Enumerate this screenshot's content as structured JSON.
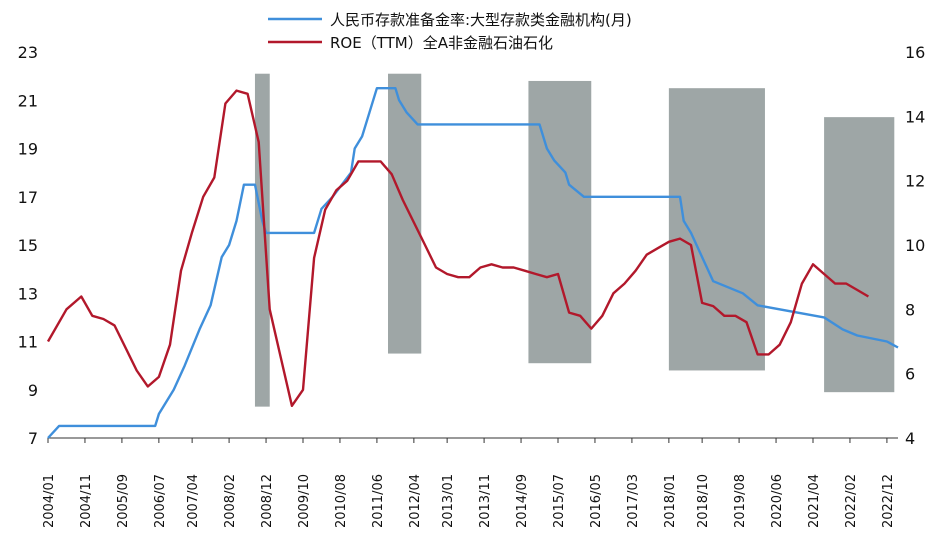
{
  "chart_data": {
    "type": "line",
    "legend_position": "top",
    "x_tick_labels": [
      "2004/01",
      "2004/11",
      "2005/09",
      "2006/07",
      "2007/04",
      "2008/02",
      "2008/12",
      "2009/10",
      "2010/08",
      "2011/06",
      "2012/04",
      "2013/01",
      "2013/11",
      "2014/09",
      "2015/07",
      "2016/05",
      "2017/03",
      "2018/01",
      "2018/10",
      "2019/08",
      "2020/06",
      "2021/04",
      "2022/02",
      "2022/12"
    ],
    "y_left": {
      "min": 7,
      "max": 23,
      "ticks": [
        7,
        9,
        11,
        13,
        15,
        17,
        19,
        21,
        23
      ]
    },
    "y_right": {
      "min": 4,
      "max": 16,
      "ticks": [
        4,
        6,
        8,
        10,
        12,
        14,
        16
      ]
    },
    "shaded_periods": [
      {
        "start": "2008/09",
        "end": "2009/01",
        "ymin_left": 8.3,
        "ymax_left": 22.1
      },
      {
        "start": "2011/09",
        "end": "2012/06",
        "ymin_left": 10.5,
        "ymax_left": 22.1
      },
      {
        "start": "2014/11",
        "end": "2016/04",
        "ymin_left": 10.1,
        "ymax_left": 21.8
      },
      {
        "start": "2018/01",
        "end": "2020/03",
        "ymin_left": 9.8,
        "ymax_left": 21.5
      },
      {
        "start": "2021/07",
        "end": "2023/02",
        "ymin_left": 8.9,
        "ymax_left": 20.3
      }
    ],
    "series": [
      {
        "name": "人民币存款准备金率:大型存款类金融机构(月)",
        "axis": "left",
        "color": "#3f8fdb",
        "points": [
          [
            "2004/01",
            7.0
          ],
          [
            "2004/04",
            7.5
          ],
          [
            "2006/06",
            7.5
          ],
          [
            "2006/07",
            8.0
          ],
          [
            "2006/11",
            9.0
          ],
          [
            "2007/02",
            10.0
          ],
          [
            "2007/06",
            11.5
          ],
          [
            "2007/09",
            12.5
          ],
          [
            "2007/12",
            14.5
          ],
          [
            "2008/02",
            15.0
          ],
          [
            "2008/04",
            16.0
          ],
          [
            "2008/06",
            17.5
          ],
          [
            "2008/09",
            17.5
          ],
          [
            "2008/11",
            16.0
          ],
          [
            "2008/12",
            15.5
          ],
          [
            "2010/01",
            15.5
          ],
          [
            "2010/03",
            16.5
          ],
          [
            "2010/06",
            17.0
          ],
          [
            "2010/11",
            18.0
          ],
          [
            "2010/12",
            19.0
          ],
          [
            "2011/02",
            19.5
          ],
          [
            "2011/04",
            20.5
          ],
          [
            "2011/06",
            21.5
          ],
          [
            "2011/11",
            21.5
          ],
          [
            "2011/12",
            21.0
          ],
          [
            "2012/02",
            20.5
          ],
          [
            "2012/05",
            20.0
          ],
          [
            "2015/02",
            20.0
          ],
          [
            "2015/04",
            19.0
          ],
          [
            "2015/06",
            18.5
          ],
          [
            "2015/09",
            18.0
          ],
          [
            "2015/10",
            17.5
          ],
          [
            "2016/02",
            17.0
          ],
          [
            "2018/04",
            17.0
          ],
          [
            "2018/05",
            16.0
          ],
          [
            "2018/07",
            15.5
          ],
          [
            "2018/10",
            14.5
          ],
          [
            "2019/01",
            13.5
          ],
          [
            "2019/09",
            13.0
          ],
          [
            "2020/01",
            12.5
          ],
          [
            "2021/07",
            12.0
          ],
          [
            "2021/12",
            11.5
          ],
          [
            "2022/04",
            11.25
          ],
          [
            "2022/12",
            11.0
          ],
          [
            "2023/03",
            10.75
          ]
        ]
      },
      {
        "name": "ROE（TTM）全A非金融石油石化",
        "axis": "right",
        "color": "#b2182b",
        "points": [
          [
            "2004/01",
            7.0
          ],
          [
            "2004/06",
            8.0
          ],
          [
            "2004/10",
            8.4
          ],
          [
            "2005/01",
            7.8
          ],
          [
            "2005/04",
            7.7
          ],
          [
            "2005/07",
            7.5
          ],
          [
            "2005/10",
            6.8
          ],
          [
            "2006/01",
            6.1
          ],
          [
            "2006/04",
            5.6
          ],
          [
            "2006/07",
            5.9
          ],
          [
            "2006/10",
            6.9
          ],
          [
            "2007/01",
            9.2
          ],
          [
            "2007/04",
            10.4
          ],
          [
            "2007/07",
            11.5
          ],
          [
            "2007/10",
            12.1
          ],
          [
            "2008/01",
            14.4
          ],
          [
            "2008/04",
            14.8
          ],
          [
            "2008/07",
            14.7
          ],
          [
            "2008/10",
            13.2
          ],
          [
            "2009/01",
            8.0
          ],
          [
            "2009/04",
            6.5
          ],
          [
            "2009/07",
            5.0
          ],
          [
            "2009/10",
            5.5
          ],
          [
            "2010/01",
            9.6
          ],
          [
            "2010/04",
            11.1
          ],
          [
            "2010/07",
            11.7
          ],
          [
            "2010/10",
            12.0
          ],
          [
            "2011/01",
            12.6
          ],
          [
            "2011/04",
            12.6
          ],
          [
            "2011/07",
            12.6
          ],
          [
            "2011/10",
            12.2
          ],
          [
            "2012/01",
            11.4
          ],
          [
            "2012/04",
            10.7
          ],
          [
            "2012/07",
            10.0
          ],
          [
            "2012/10",
            9.3
          ],
          [
            "2013/01",
            9.1
          ],
          [
            "2013/04",
            9.0
          ],
          [
            "2013/07",
            9.0
          ],
          [
            "2013/10",
            9.3
          ],
          [
            "2014/01",
            9.4
          ],
          [
            "2014/04",
            9.3
          ],
          [
            "2014/07",
            9.3
          ],
          [
            "2014/10",
            9.2
          ],
          [
            "2015/01",
            9.1
          ],
          [
            "2015/04",
            9.0
          ],
          [
            "2015/07",
            9.1
          ],
          [
            "2015/10",
            7.9
          ],
          [
            "2016/01",
            7.8
          ],
          [
            "2016/04",
            7.4
          ],
          [
            "2016/07",
            7.8
          ],
          [
            "2016/10",
            8.5
          ],
          [
            "2017/01",
            8.8
          ],
          [
            "2017/04",
            9.2
          ],
          [
            "2017/07",
            9.7
          ],
          [
            "2017/10",
            9.9
          ],
          [
            "2018/01",
            10.1
          ],
          [
            "2018/04",
            10.2
          ],
          [
            "2018/07",
            10.0
          ],
          [
            "2018/10",
            8.2
          ],
          [
            "2019/01",
            8.1
          ],
          [
            "2019/04",
            7.8
          ],
          [
            "2019/07",
            7.8
          ],
          [
            "2019/10",
            7.6
          ],
          [
            "2020/01",
            6.6
          ],
          [
            "2020/04",
            6.6
          ],
          [
            "2020/07",
            6.9
          ],
          [
            "2020/10",
            7.6
          ],
          [
            "2021/01",
            8.8
          ],
          [
            "2021/04",
            9.4
          ],
          [
            "2021/07",
            9.1
          ],
          [
            "2021/10",
            8.8
          ],
          [
            "2022/01",
            8.8
          ],
          [
            "2022/04",
            8.6
          ],
          [
            "2022/07",
            8.4
          ]
        ]
      }
    ]
  }
}
